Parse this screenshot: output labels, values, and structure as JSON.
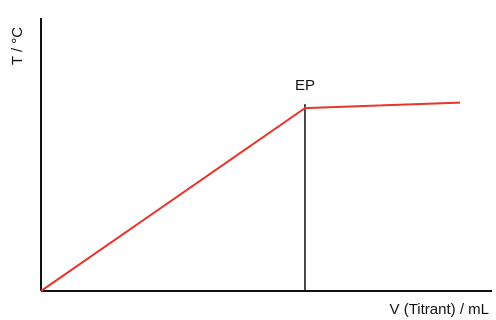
{
  "chart_data": {
    "type": "line",
    "title": "",
    "xlabel": "V (Titrant) / mL",
    "ylabel": "T / °C",
    "x_ticks": false,
    "y_ticks": false,
    "grid": false,
    "xlim": [
      0,
      10
    ],
    "ylim": [
      0,
      10
    ],
    "annotations": [
      {
        "label": "EP",
        "x": 6.3
      }
    ],
    "series": [
      {
        "color": "#e8352b",
        "points": [
          {
            "x": 0,
            "y": 0
          },
          {
            "x": 6.3,
            "y": 6.7
          },
          {
            "x": 10,
            "y": 6.9
          }
        ]
      }
    ]
  }
}
